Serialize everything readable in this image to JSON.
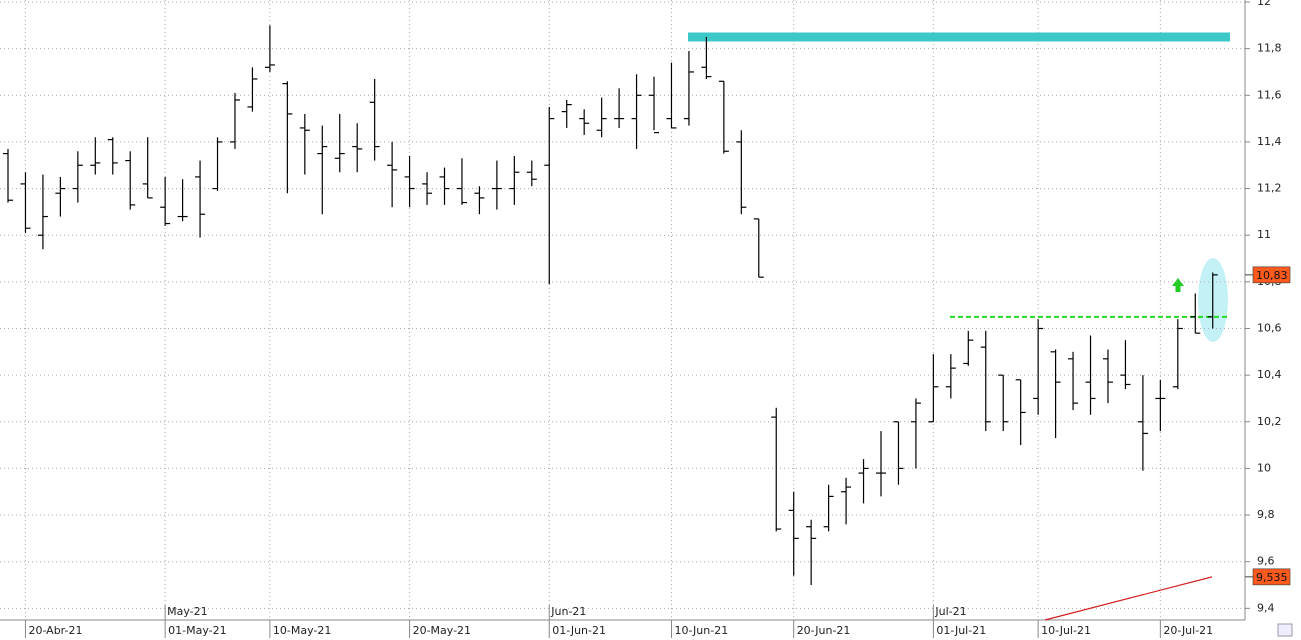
{
  "chart_data": {
    "type": "ohlc",
    "categories": [
      null,
      "20-Abr-21",
      null,
      null,
      null,
      null,
      null,
      null,
      null,
      "01-May-21",
      null,
      null,
      null,
      null,
      null,
      "10-May-21",
      null,
      null,
      null,
      null,
      null,
      null,
      null,
      "20-May-21",
      null,
      null,
      null,
      null,
      null,
      null,
      null,
      "01-Jun-21",
      null,
      null,
      null,
      null,
      null,
      null,
      "10-Jun-21",
      null,
      null,
      null,
      null,
      null,
      null,
      "20-Jun-21",
      null,
      null,
      null,
      null,
      null,
      null,
      null,
      "01-Jul-21",
      null,
      null,
      null,
      null,
      null,
      "10-Jul-21",
      null,
      null,
      null,
      null,
      null,
      null,
      "20-Jul-21",
      null,
      null,
      null
    ],
    "months": [
      null,
      null,
      null,
      null,
      null,
      null,
      null,
      null,
      null,
      "May-21",
      null,
      null,
      null,
      null,
      null,
      null,
      null,
      null,
      null,
      null,
      null,
      null,
      null,
      null,
      null,
      null,
      null,
      null,
      null,
      null,
      null,
      "Jun-21",
      null,
      null,
      null,
      null,
      null,
      null,
      null,
      null,
      null,
      null,
      null,
      null,
      null,
      null,
      null,
      null,
      null,
      null,
      null,
      null,
      null,
      "Jul-21",
      null,
      null,
      null,
      null,
      null,
      null,
      null,
      null,
      null,
      null,
      null,
      null,
      null,
      null,
      null,
      null
    ],
    "open": [
      11.35,
      11.22,
      11.0,
      11.18,
      11.2,
      11.3,
      11.41,
      11.32,
      11.22,
      11.12,
      11.08,
      11.25,
      11.2,
      11.4,
      11.55,
      11.72,
      11.65,
      11.46,
      11.35,
      11.33,
      11.38,
      11.57,
      11.3,
      11.25,
      11.22,
      11.25,
      11.2,
      11.18,
      11.2,
      11.2,
      11.27,
      11.3,
      11.53,
      11.5,
      11.45,
      11.5,
      11.5,
      11.6,
      11.5,
      11.5,
      11.72,
      11.66,
      11.4,
      11.07,
      10.22,
      9.82,
      9.75,
      9.75,
      9.9,
      9.98,
      9.98,
      10.2,
      10.2,
      10.2,
      10.35,
      10.45,
      10.52,
      10.4,
      10.38,
      10.3,
      10.5,
      10.47,
      10.37,
      10.47,
      10.4,
      10.2,
      10.3,
      10.35,
      10.65,
      10.65
    ],
    "high": [
      11.37,
      11.27,
      11.26,
      11.25,
      11.36,
      11.42,
      11.42,
      11.36,
      11.42,
      11.25,
      11.24,
      11.32,
      11.42,
      11.61,
      11.72,
      11.9,
      11.66,
      11.52,
      11.47,
      11.52,
      11.48,
      11.67,
      11.4,
      11.34,
      11.27,
      11.29,
      11.33,
      11.21,
      11.32,
      11.34,
      11.32,
      11.55,
      11.58,
      11.54,
      11.59,
      11.63,
      11.69,
      11.68,
      11.74,
      11.79,
      11.85,
      11.66,
      11.45,
      11.07,
      10.26,
      9.9,
      9.78,
      9.93,
      9.96,
      10.04,
      10.16,
      10.2,
      10.3,
      10.49,
      10.49,
      10.59,
      10.59,
      10.4,
      10.38,
      10.64,
      10.51,
      10.5,
      10.57,
      10.51,
      10.55,
      10.4,
      10.38,
      10.64,
      10.75,
      10.84
    ],
    "low": [
      11.14,
      11.01,
      10.94,
      11.08,
      11.14,
      11.26,
      11.26,
      11.11,
      11.16,
      11.04,
      11.06,
      10.99,
      11.19,
      11.37,
      11.53,
      11.7,
      11.18,
      11.26,
      11.09,
      11.27,
      11.27,
      11.32,
      11.12,
      11.12,
      11.13,
      11.13,
      11.13,
      11.09,
      11.11,
      11.13,
      11.21,
      10.79,
      11.46,
      11.43,
      11.42,
      11.46,
      11.37,
      11.45,
      11.46,
      11.47,
      11.67,
      11.35,
      11.09,
      10.82,
      9.73,
      9.54,
      9.5,
      9.73,
      9.76,
      9.85,
      9.88,
      9.93,
      10.0,
      10.2,
      10.3,
      10.44,
      10.16,
      10.16,
      10.1,
      10.23,
      10.13,
      10.25,
      10.23,
      10.28,
      10.34,
      9.99,
      10.16,
      10.34,
      10.58,
      10.6
    ],
    "close": [
      11.15,
      11.03,
      11.08,
      11.2,
      11.3,
      11.31,
      11.31,
      11.13,
      11.16,
      11.05,
      11.08,
      11.09,
      11.4,
      11.58,
      11.67,
      11.73,
      11.52,
      11.45,
      11.38,
      11.35,
      11.37,
      11.38,
      11.28,
      11.2,
      11.18,
      11.2,
      11.14,
      11.16,
      11.2,
      11.27,
      11.24,
      11.5,
      11.56,
      11.48,
      11.5,
      11.5,
      11.6,
      11.44,
      11.46,
      11.7,
      11.68,
      11.36,
      11.12,
      10.82,
      9.74,
      9.7,
      9.7,
      9.88,
      9.92,
      10.0,
      9.98,
      10.0,
      10.28,
      10.35,
      10.43,
      10.55,
      10.2,
      10.2,
      10.24,
      10.6,
      10.37,
      10.28,
      10.3,
      10.37,
      10.36,
      10.15,
      10.3,
      10.6,
      10.58,
      10.83
    ],
    "color": "#000000",
    "ylim": [
      9.35,
      12.0
    ],
    "yticks": [
      {
        "value": 9.4,
        "label": "9,4"
      },
      {
        "value": 9.6,
        "label": "9,6"
      },
      {
        "value": 9.8,
        "label": "9,8"
      },
      10,
      {
        "value": 10.2,
        "label": "10,2"
      },
      {
        "value": 10.4,
        "label": "10,4"
      },
      {
        "value": 10.6,
        "label": "10,6"
      },
      {
        "value": 10.8,
        "label": "10,8"
      },
      11,
      {
        "value": 11.2,
        "label": "11,2"
      },
      {
        "value": 11.4,
        "label": "11,4"
      },
      {
        "value": 11.6,
        "label": "11,6"
      },
      {
        "value": 11.8,
        "label": "11,8"
      },
      12
    ],
    "grid": true,
    "levels": [
      {
        "value": 11.85,
        "color": "#3cc8c8"
      },
      {
        "value": 10.65,
        "color": "#22dd22"
      }
    ],
    "price_labels": [
      {
        "value": 10.83,
        "label": "10,83",
        "color": "#ff5a1e"
      },
      {
        "value": 9.535,
        "label": "9,535",
        "color": "#ff5a1e"
      }
    ]
  }
}
